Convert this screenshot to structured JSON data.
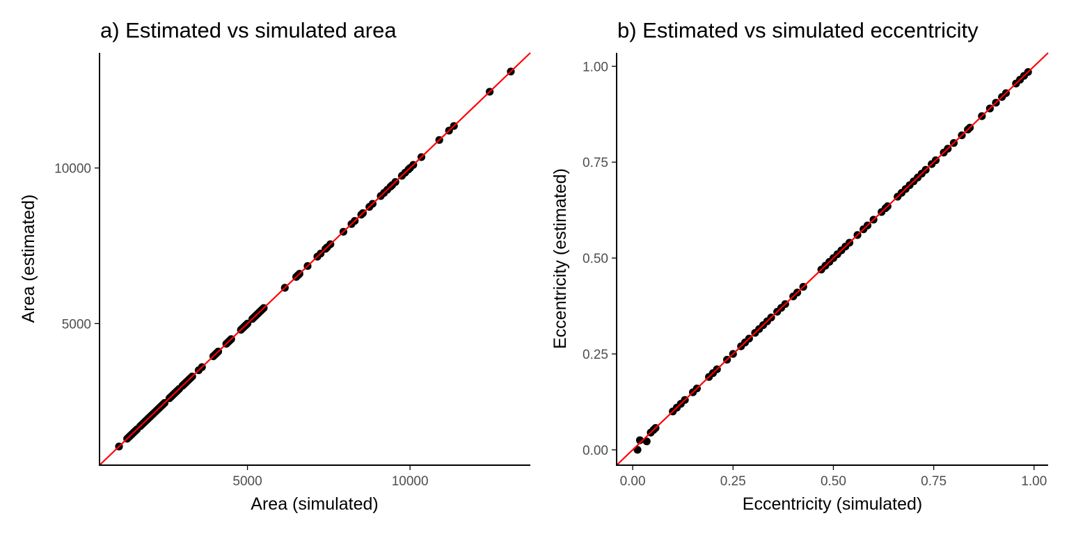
{
  "colors": {
    "points": "#000000",
    "identity_line": "#ff0000",
    "axis": "#000000",
    "tick_text": "#4d4d4d"
  },
  "chart_data": [
    {
      "type": "scatter",
      "title": "a) Estimated vs simulated area",
      "xlabel": "Area (simulated)",
      "ylabel": "Area (estimated)",
      "xlim": [
        450,
        13700
      ],
      "ylim": [
        450,
        13700
      ],
      "xticks": [
        5000,
        10000
      ],
      "yticks": [
        5000,
        10000
      ],
      "tick_labels_x": [
        "5000",
        "10000"
      ],
      "tick_labels_y": [
        "5000",
        "10000"
      ],
      "grid": false,
      "reference_line": {
        "type": "identity",
        "intercept": 0,
        "slope": 1
      },
      "x": [
        1050,
        1300,
        1350,
        1400,
        1450,
        1500,
        1550,
        1600,
        1700,
        1750,
        1800,
        1850,
        1900,
        1950,
        2000,
        2050,
        2100,
        2150,
        2200,
        2250,
        2300,
        2350,
        2400,
        2450,
        2600,
        2650,
        2700,
        2750,
        2800,
        2850,
        2900,
        3000,
        3050,
        3100,
        3150,
        3200,
        3250,
        3300,
        3500,
        3600,
        3950,
        4000,
        4050,
        4100,
        4350,
        4400,
        4450,
        4500,
        4800,
        4850,
        4900,
        4950,
        5000,
        5150,
        5200,
        5250,
        5300,
        5350,
        5400,
        5450,
        5500,
        6150,
        6500,
        6550,
        6600,
        6850,
        7150,
        7250,
        7400,
        7450,
        7550,
        7950,
        8200,
        8300,
        8500,
        8550,
        8750,
        8850,
        9100,
        9200,
        9300,
        9400,
        9450,
        9550,
        9750,
        9850,
        9950,
        10000,
        10100,
        10350,
        10900,
        11200,
        11350,
        12450,
        13100
      ],
      "y": [
        1050,
        1300,
        1350,
        1400,
        1450,
        1500,
        1550,
        1600,
        1700,
        1750,
        1800,
        1850,
        1900,
        1950,
        2000,
        2050,
        2100,
        2150,
        2200,
        2250,
        2300,
        2350,
        2400,
        2450,
        2600,
        2650,
        2700,
        2750,
        2800,
        2850,
        2900,
        3000,
        3050,
        3100,
        3150,
        3200,
        3250,
        3300,
        3500,
        3600,
        3950,
        4000,
        4050,
        4100,
        4350,
        4400,
        4450,
        4500,
        4800,
        4850,
        4900,
        4950,
        5000,
        5150,
        5200,
        5250,
        5300,
        5350,
        5400,
        5450,
        5500,
        6150,
        6500,
        6550,
        6600,
        6850,
        7150,
        7250,
        7400,
        7450,
        7550,
        7950,
        8200,
        8300,
        8500,
        8550,
        8750,
        8850,
        9100,
        9200,
        9300,
        9400,
        9450,
        9550,
        9750,
        9850,
        9950,
        10000,
        10100,
        10350,
        10900,
        11200,
        11350,
        12450,
        13100
      ]
    },
    {
      "type": "scatter",
      "title": "b) Estimated vs simulated eccentricity",
      "xlabel": "Eccentricity (simulated)",
      "ylabel": "Eccentricity (estimated)",
      "xlim": [
        -0.04,
        1.035
      ],
      "ylim": [
        -0.04,
        1.035
      ],
      "xticks": [
        0.0,
        0.25,
        0.5,
        0.75,
        1.0
      ],
      "yticks": [
        0.0,
        0.25,
        0.5,
        0.75,
        1.0
      ],
      "tick_labels_x": [
        "0.00",
        "0.25",
        "0.50",
        "0.75",
        "1.00"
      ],
      "tick_labels_y": [
        "0.00",
        "0.25",
        "0.50",
        "0.75",
        "1.00"
      ],
      "grid": false,
      "reference_line": {
        "type": "identity",
        "intercept": 0,
        "slope": 1
      },
      "x": [
        0.012,
        0.018,
        0.035,
        0.045,
        0.052,
        0.057,
        0.1,
        0.11,
        0.12,
        0.13,
        0.15,
        0.16,
        0.19,
        0.2,
        0.21,
        0.235,
        0.25,
        0.27,
        0.28,
        0.29,
        0.305,
        0.315,
        0.325,
        0.335,
        0.345,
        0.36,
        0.37,
        0.38,
        0.4,
        0.41,
        0.425,
        0.47,
        0.48,
        0.49,
        0.5,
        0.51,
        0.52,
        0.53,
        0.54,
        0.56,
        0.575,
        0.585,
        0.6,
        0.62,
        0.63,
        0.635,
        0.66,
        0.67,
        0.68,
        0.69,
        0.7,
        0.71,
        0.72,
        0.73,
        0.745,
        0.755,
        0.775,
        0.785,
        0.8,
        0.82,
        0.835,
        0.84,
        0.87,
        0.89,
        0.905,
        0.92,
        0.93,
        0.955,
        0.965,
        0.975,
        0.985
      ],
      "y": [
        0.0,
        0.025,
        0.022,
        0.045,
        0.052,
        0.057,
        0.1,
        0.11,
        0.12,
        0.13,
        0.15,
        0.16,
        0.19,
        0.2,
        0.21,
        0.235,
        0.25,
        0.27,
        0.28,
        0.29,
        0.305,
        0.315,
        0.325,
        0.335,
        0.345,
        0.36,
        0.37,
        0.38,
        0.4,
        0.41,
        0.425,
        0.47,
        0.48,
        0.49,
        0.5,
        0.51,
        0.52,
        0.53,
        0.54,
        0.56,
        0.575,
        0.585,
        0.6,
        0.62,
        0.63,
        0.635,
        0.66,
        0.67,
        0.68,
        0.69,
        0.7,
        0.71,
        0.72,
        0.73,
        0.745,
        0.755,
        0.775,
        0.785,
        0.8,
        0.82,
        0.835,
        0.84,
        0.87,
        0.89,
        0.905,
        0.92,
        0.93,
        0.955,
        0.965,
        0.975,
        0.985
      ]
    }
  ]
}
